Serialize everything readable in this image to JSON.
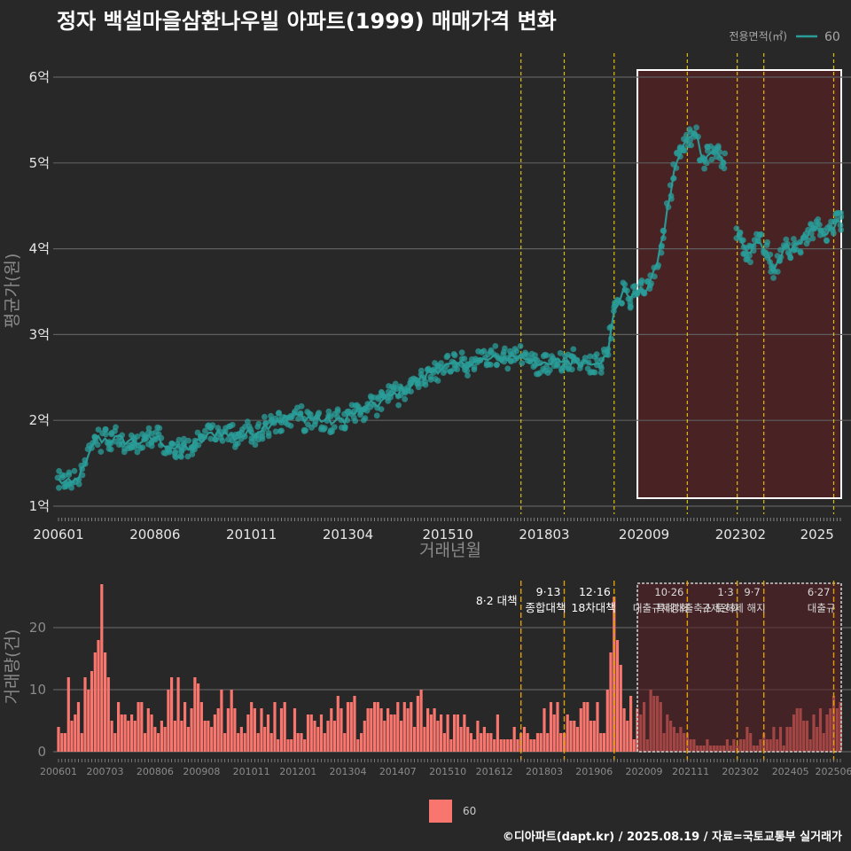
{
  "title": "정자 백설마을삼환나우빌 아파트(1999) 매매가격 변화",
  "footer": "©디아파트(dapt.kr) / 2025.08.19 / 자료=국토교통부 실거래가",
  "colors": {
    "background": "#282828",
    "price": "#2a9d9a",
    "volume": "#f8766d",
    "policy_line": "#ffd700",
    "highlight": "#5a1f22"
  },
  "chart_data": [
    {
      "type": "line",
      "name": "price",
      "ylabel": "평균가(원)",
      "xlabel": "거래년월",
      "ylim": [
        1,
        6
      ],
      "yticks": [
        1,
        2,
        3,
        4,
        5,
        6
      ],
      "ytick_labels": [
        "1억",
        "2억",
        "3억",
        "4억",
        "5억",
        "6억"
      ],
      "xticks": [
        "200601",
        "200806",
        "201011",
        "201304",
        "201510",
        "201803",
        "202009",
        "202302",
        "2025"
      ],
      "legend_title": "전용면적(㎡)",
      "series": [
        {
          "name": "60",
          "anchors": [
            [
              "2006-01",
              1.3
            ],
            [
              "2006-05",
              1.25
            ],
            [
              "2006-09",
              1.45
            ],
            [
              "2006-12",
              1.78
            ],
            [
              "2007-06",
              1.78
            ],
            [
              "2008-01",
              1.75
            ],
            [
              "2008-06",
              1.8
            ],
            [
              "2009-01",
              1.65
            ],
            [
              "2009-06",
              1.72
            ],
            [
              "2010-01",
              1.88
            ],
            [
              "2010-06",
              1.8
            ],
            [
              "2010-11",
              1.85
            ],
            [
              "2011-06",
              2.0
            ],
            [
              "2012-01",
              2.05
            ],
            [
              "2012-06",
              2.02
            ],
            [
              "2013-01",
              1.98
            ],
            [
              "2013-04",
              2.05
            ],
            [
              "2014-01",
              2.2
            ],
            [
              "2014-06",
              2.3
            ],
            [
              "2015-01",
              2.45
            ],
            [
              "2015-06",
              2.6
            ],
            [
              "2015-10",
              2.62
            ],
            [
              "2016-06",
              2.68
            ],
            [
              "2017-01",
              2.72
            ],
            [
              "2017-06",
              2.75
            ],
            [
              "2017-12",
              2.72
            ],
            [
              "2018-03",
              2.62
            ],
            [
              "2018-08",
              2.7
            ],
            [
              "2019-01",
              2.68
            ],
            [
              "2019-06",
              2.7
            ],
            [
              "2019-10",
              2.72
            ],
            [
              "2019-12",
              3.3
            ],
            [
              "2020-03",
              3.5
            ],
            [
              "2020-06",
              3.45
            ],
            [
              "2020-09",
              3.5
            ],
            [
              "2020-12",
              3.7
            ],
            [
              "2021-03",
              4.2
            ],
            [
              "2021-06",
              4.9
            ],
            [
              "2021-09",
              5.2
            ],
            [
              "2021-12",
              5.4
            ],
            [
              "2022-03",
              5.05
            ],
            [
              "2022-06",
              5.15
            ],
            [
              "2022-09",
              5.0
            ],
            [
              "2023-01",
              4.2
            ],
            [
              "2023-04",
              3.95
            ],
            [
              "2023-08",
              4.05
            ],
            [
              "2023-12",
              3.8
            ],
            [
              "2024-04",
              4.0
            ],
            [
              "2024-08",
              4.1
            ],
            [
              "2024-12",
              4.2
            ],
            [
              "2025-04",
              4.15
            ],
            [
              "2025-07",
              4.3
            ]
          ]
        }
      ],
      "highlight_range": [
        "2020-07",
        "2025-08"
      ]
    },
    {
      "type": "bar",
      "name": "volume",
      "ylabel": "거래량(건)",
      "ylim": [
        0,
        27
      ],
      "yticks": [
        0,
        10,
        20
      ],
      "xticks": [
        "200601",
        "200703",
        "200806",
        "200908",
        "201011",
        "201201",
        "201304",
        "201407",
        "201510",
        "201612",
        "201803",
        "201906",
        "202009",
        "202111",
        "202302",
        "202405",
        "202506"
      ],
      "legend": [
        "60"
      ],
      "anchors": [
        [
          "2006-01",
          4
        ],
        [
          "2006-03",
          9
        ],
        [
          "2006-06",
          7
        ],
        [
          "2006-09",
          10
        ],
        [
          "2007-01",
          18
        ],
        [
          "2007-02",
          27
        ],
        [
          "2007-03",
          16
        ],
        [
          "2007-06",
          7
        ],
        [
          "2008-01",
          6
        ],
        [
          "2009-01",
          8
        ],
        [
          "2010-01",
          7
        ],
        [
          "2011-01",
          6
        ],
        [
          "2012-01",
          5
        ],
        [
          "2013-01",
          6
        ],
        [
          "2014-01",
          6
        ],
        [
          "2015-01",
          7
        ],
        [
          "2016-01",
          5
        ],
        [
          "2017-01",
          4
        ],
        [
          "2017-08",
          3
        ],
        [
          "2018-01",
          4
        ],
        [
          "2018-06",
          7
        ],
        [
          "2019-01",
          5
        ],
        [
          "2019-10",
          7
        ],
        [
          "2019-12",
          25
        ],
        [
          "2020-02",
          10
        ],
        [
          "2020-06",
          5
        ],
        [
          "2021-01",
          7
        ],
        [
          "2021-06",
          3
        ],
        [
          "2022-01",
          2
        ],
        [
          "2022-06",
          1
        ],
        [
          "2023-01",
          2
        ],
        [
          "2023-06",
          3
        ],
        [
          "2024-01",
          3
        ],
        [
          "2024-06",
          5
        ],
        [
          "2025-01",
          5
        ],
        [
          "2025-06",
          6
        ]
      ],
      "highlight_range": [
        "2020-07",
        "2025-08"
      ]
    }
  ],
  "policies": [
    {
      "date": "2017-08",
      "label1": "8·2 대책",
      "label2": ""
    },
    {
      "date": "2018-09",
      "label1": "9·13",
      "label2": "종합대책"
    },
    {
      "date": "2019-12",
      "label1": "12·16",
      "label2": "18차대책"
    },
    {
      "date": "2021-10",
      "label1": "10·26",
      "label2": "대출규제강화"
    },
    {
      "date": "2023-01",
      "label1": "1·3",
      "label2": "규제완화"
    },
    {
      "date": "2023-09",
      "label1": "9·7",
      "label2": "특례대출축소 토허제 해지"
    },
    {
      "date": "2025-06",
      "label1": "6·27",
      "label2": "대출규"
    }
  ]
}
